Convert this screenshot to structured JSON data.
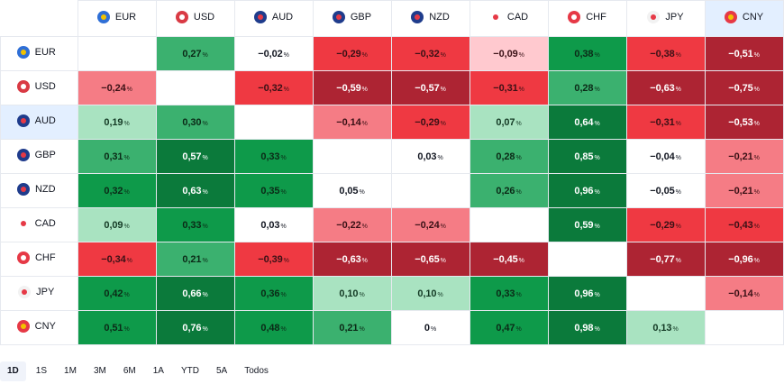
{
  "currencies": [
    {
      "code": "EUR",
      "flag": "eur-flag-icon",
      "c1": "#2f6fd6",
      "c2": "#f2c200"
    },
    {
      "code": "USD",
      "flag": "usd-flag-icon",
      "c1": "#d93a44",
      "c2": "#ffffff"
    },
    {
      "code": "AUD",
      "flag": "aud-flag-icon",
      "c1": "#1f3c8c",
      "c2": "#e63946"
    },
    {
      "code": "GBP",
      "flag": "gbp-flag-icon",
      "c1": "#1f3c8c",
      "c2": "#e63946"
    },
    {
      "code": "NZD",
      "flag": "nzd-flag-icon",
      "c1": "#1f3c8c",
      "c2": "#e63946"
    },
    {
      "code": "CAD",
      "flag": "cad-flag-icon",
      "c1": "#ffffff",
      "c2": "#e63946"
    },
    {
      "code": "CHF",
      "flag": "chf-flag-icon",
      "c1": "#e63946",
      "c2": "#ffffff"
    },
    {
      "code": "JPY",
      "flag": "jpy-flag-icon",
      "c1": "#f2f2f2",
      "c2": "#e63946"
    },
    {
      "code": "CNY",
      "flag": "cny-flag-icon",
      "c1": "#e63946",
      "c2": "#f2c200"
    }
  ],
  "highlight": {
    "column": "CNY",
    "row": "AUD",
    "color": "#e3efff"
  },
  "percent_sign": "%",
  "rows": [
    {
      "code": "EUR",
      "cells": [
        null,
        "0,27",
        "−0,02",
        "−0,29",
        "−0,32",
        "−0,09",
        "0,38",
        "−0,38",
        "−0,51"
      ]
    },
    {
      "code": "USD",
      "cells": [
        "−0,24",
        null,
        "−0,32",
        "−0,59",
        "−0,57",
        "−0,31",
        "0,28",
        "−0,63",
        "−0,75"
      ]
    },
    {
      "code": "AUD",
      "cells": [
        "0,19",
        "0,30",
        null,
        "−0,14",
        "−0,29",
        "0,07",
        "0,64",
        "−0,31",
        "−0,53"
      ]
    },
    {
      "code": "GBP",
      "cells": [
        "0,31",
        "0,57",
        "0,33",
        null,
        "0,03",
        "0,28",
        "0,85",
        "−0,04",
        "−0,21"
      ]
    },
    {
      "code": "NZD",
      "cells": [
        "0,32",
        "0,63",
        "0,35",
        "0,05",
        null,
        "0,26",
        "0,96",
        "−0,05",
        "−0,21"
      ]
    },
    {
      "code": "CAD",
      "cells": [
        "0,09",
        "0,33",
        "0,03",
        "−0,22",
        "−0,24",
        null,
        "0,59",
        "−0,29",
        "−0,43"
      ]
    },
    {
      "code": "CHF",
      "cells": [
        "−0,34",
        "0,21",
        "−0,39",
        "−0,63",
        "−0,65",
        "−0,45",
        null,
        "−0,77",
        "−0,96"
      ]
    },
    {
      "code": "JPY",
      "cells": [
        "0,42",
        "0,66",
        "0,36",
        "0,10",
        "0,10",
        "0,33",
        "0,96",
        null,
        "−0,14"
      ]
    },
    {
      "code": "CNY",
      "cells": [
        "0,51",
        "0,76",
        "0,48",
        "0,21",
        "0",
        "0,47",
        "0,98",
        "0,13",
        null
      ]
    }
  ],
  "heat_colors": {
    "strong_positive": "#0b7a3b",
    "positive": "#0e9a4a",
    "mild_positive": "#3bb16f",
    "slight_positive": "#a9e3c1",
    "neutral": "#ffffff",
    "slight_negative": "#ffc9cf",
    "mild_negative": "#f57c85",
    "negative": "#ef3942",
    "strong_negative": "#ad2433"
  },
  "ranges": [
    "1D",
    "1S",
    "1M",
    "3M",
    "6M",
    "1A",
    "YTD",
    "5A",
    "Todos"
  ],
  "active_range": "1D"
}
